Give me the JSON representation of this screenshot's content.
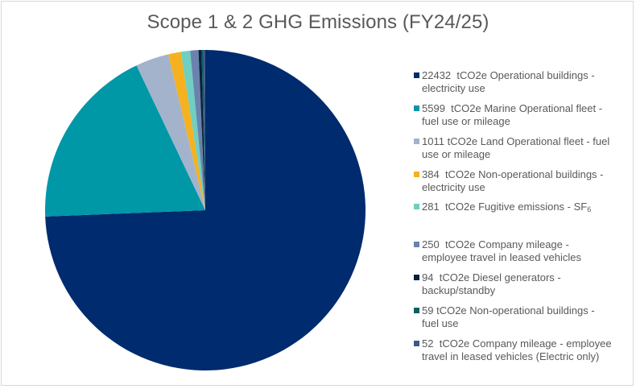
{
  "title": "Scope 1 & 2 GHG Emissions (FY24/25)",
  "chart_data": {
    "type": "pie",
    "title": "Scope 1 & 2 GHG Emissions (FY24/25)",
    "unit": "tCO2e",
    "start_angle_deg": 0,
    "direction": "clockwise",
    "legend_position": "right",
    "categories": [
      "Operational buildings - electricity use",
      "Marine Operational fleet - fuel use or mileage",
      "Land Operational fleet - fuel use or mileage",
      "Non-operational buildings - electricity use",
      "Fugitive emissions - SF6",
      "Company mileage - employee travel in leased vehicles",
      "Diesel generators - backup/standby",
      "Non-operational buildings - fuel use",
      "Company mileage - employee travel in leased vehicles (Electric only)"
    ],
    "values": [
      22432,
      5599,
      1011,
      384,
      281,
      250,
      94,
      59,
      52
    ],
    "colors": [
      "#002b6e",
      "#0097a7",
      "#a3b3cc",
      "#f5b120",
      "#6fcfc1",
      "#6a83ad",
      "#0a1f3d",
      "#0e5e66",
      "#3d5a85"
    ]
  },
  "legend": {
    "items": [
      {
        "value": "22432",
        "text": "tCO2e Operational buildings -",
        "line2": "electricity use",
        "color": "#002b6e"
      },
      {
        "value": "5599",
        "text": "tCO2e Marine Operational fleet -",
        "line2": "fuel use or mileage",
        "color": "#0097a7"
      },
      {
        "value": "1011",
        "text": "tCO2e Land Operational fleet - fuel",
        "line2": "use or mileage",
        "color": "#a3b3cc"
      },
      {
        "value": "384",
        "text": "tCO2e Non-operational buildings -",
        "line2": "electricity use",
        "color": "#f5b120"
      },
      {
        "value": "281",
        "text": "tCO2e Fugitive emissions - SF",
        "sub": "6",
        "color": "#6fcfc1"
      },
      {
        "value": "250",
        "text": "tCO2e Company mileage -",
        "line2": "employee travel in leased vehicles",
        "color": "#6a83ad"
      },
      {
        "value": "94",
        "text": "tCO2e Diesel generators -",
        "line2": "backup/standby",
        "color": "#0a1f3d"
      },
      {
        "value": "59",
        "text": "tCO2e Non-operational buildings -",
        "line2": "fuel use",
        "color": "#0e5e66"
      },
      {
        "value": "52",
        "text": "tCO2e Company mileage - employee",
        "line2": "travel in leased vehicles (Electric only)",
        "color": "#3d5a85"
      }
    ]
  }
}
